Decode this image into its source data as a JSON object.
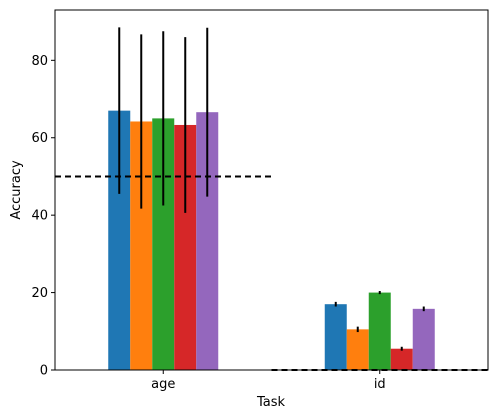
{
  "chart_data": {
    "type": "bar",
    "title": "",
    "xlabel": "Task",
    "ylabel": "Accuracy",
    "categories": [
      "age",
      "id"
    ],
    "ylim": [
      0,
      93
    ],
    "yticks": [
      0,
      20,
      40,
      60,
      80
    ],
    "grid": false,
    "legend": "none",
    "series": [
      {
        "color": "#1f77b4",
        "values": [
          67.0,
          17.0
        ],
        "errors": [
          21.5,
          0.6
        ]
      },
      {
        "color": "#ff7f0e",
        "values": [
          64.2,
          10.5
        ],
        "errors": [
          22.5,
          0.7
        ]
      },
      {
        "color": "#2ca02c",
        "values": [
          65.0,
          20.0
        ],
        "errors": [
          22.5,
          0.4
        ]
      },
      {
        "color": "#d62728",
        "values": [
          63.3,
          5.5
        ],
        "errors": [
          22.7,
          0.5
        ]
      },
      {
        "color": "#9467bd",
        "values": [
          66.6,
          15.8
        ],
        "errors": [
          21.8,
          0.6
        ]
      }
    ],
    "reference_lines": [
      {
        "category": "age",
        "value": 50
      },
      {
        "category": "id",
        "value": 0
      }
    ]
  }
}
